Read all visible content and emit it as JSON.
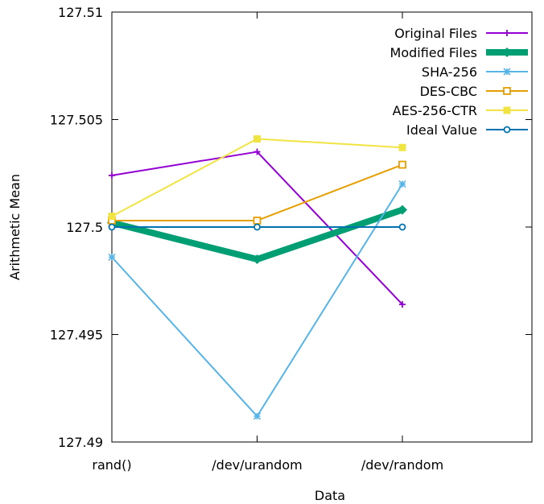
{
  "chart_data": {
    "type": "line",
    "title": "",
    "xlabel": "Data",
    "ylabel": "Arithmetic Mean",
    "categories": [
      "rand()",
      "/dev/urandom",
      "/dev/random"
    ],
    "yticks": [
      "127.49",
      "127.495",
      "127.5",
      "127.505",
      "127.51"
    ],
    "ylim": [
      127.49,
      127.51
    ],
    "grid": false,
    "legend_position": "top-right",
    "series": [
      {
        "name": "Original Files",
        "values": [
          127.5024,
          127.5035,
          127.4964
        ],
        "color": "#9400d3",
        "marker": "plus",
        "width": 2
      },
      {
        "name": "Modified Files",
        "values": [
          127.5002,
          127.4985,
          127.5008
        ],
        "color": "#009e73",
        "marker": "diamond",
        "width": 8
      },
      {
        "name": "SHA-256",
        "values": [
          127.4986,
          127.4912,
          127.502
        ],
        "color": "#56b4e9",
        "marker": "star",
        "width": 2
      },
      {
        "name": "DES-CBC",
        "values": [
          127.5003,
          127.5003,
          127.5029
        ],
        "color": "#e69f00",
        "marker": "square-open",
        "width": 2
      },
      {
        "name": "AES-256-CTR",
        "values": [
          127.5005,
          127.5041,
          127.5037
        ],
        "color": "#f0e442",
        "marker": "square-filled",
        "width": 2
      },
      {
        "name": "Ideal Value",
        "values": [
          127.5,
          127.5,
          127.5
        ],
        "color": "#0072b2",
        "marker": "circle-open",
        "width": 2
      }
    ]
  }
}
